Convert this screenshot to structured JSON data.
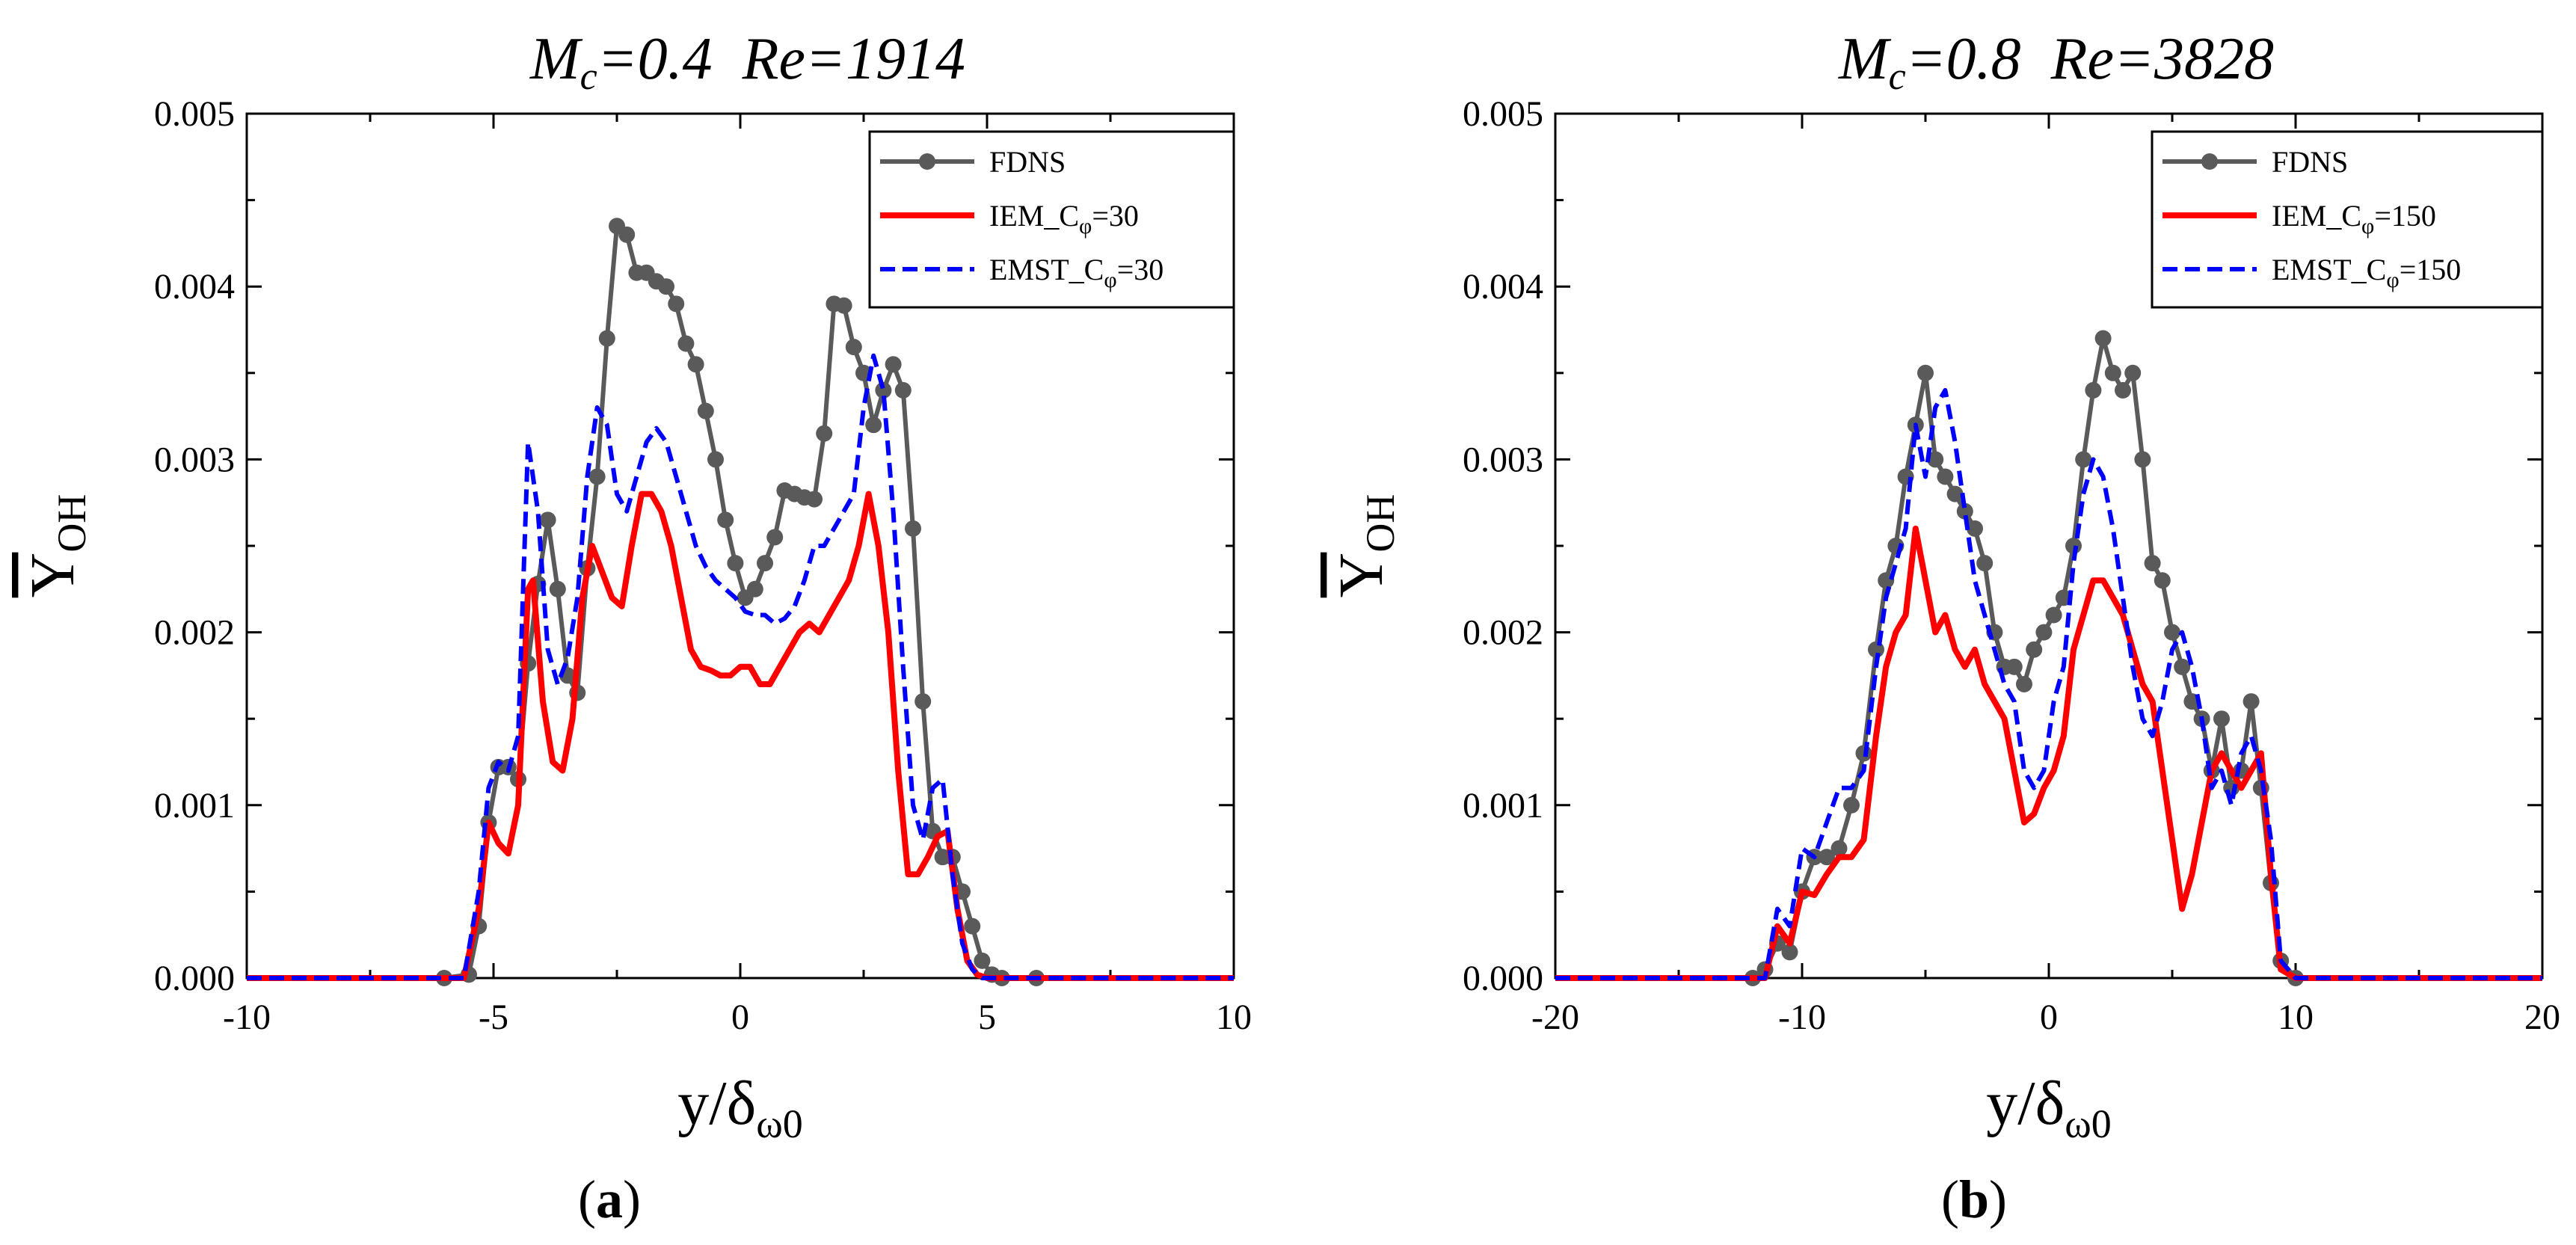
{
  "chart_data": [
    {
      "panel_label": "a",
      "type": "line",
      "title_parts": {
        "m": "M",
        "m_sub": "c",
        "m_value": "=0.4",
        "re": "Re=1914"
      },
      "ylabel_parts": {
        "main": "Y",
        "sub": "OH"
      },
      "xlabel_parts": {
        "main": "y/δ",
        "sub": "ω0"
      },
      "xlim": [
        -10,
        10
      ],
      "ylim": [
        0,
        0.005
      ],
      "xticks": [
        "-10",
        "-5",
        "0",
        "5",
        "10"
      ],
      "yticks": [
        "0.000",
        "0.001",
        "0.002",
        "0.003",
        "0.004",
        "0.005"
      ],
      "legend_position": "top-right",
      "grid": false,
      "series": [
        {
          "name": "FDNS",
          "legend": {
            "main": "FDNS",
            "sub": "",
            "suffix": ""
          },
          "color": "#5a5a5a",
          "style": "solid-markers",
          "x": [
            -10,
            -6,
            -5.5,
            -5.3,
            -5.1,
            -4.9,
            -4.7,
            -4.5,
            -4.3,
            -4.1,
            -3.9,
            -3.7,
            -3.5,
            -3.3,
            -3.1,
            -2.9,
            -2.7,
            -2.5,
            -2.3,
            -2.1,
            -1.9,
            -1.7,
            -1.5,
            -1.3,
            -1.1,
            -0.9,
            -0.7,
            -0.5,
            -0.3,
            -0.1,
            0.1,
            0.3,
            0.5,
            0.7,
            0.9,
            1.1,
            1.3,
            1.5,
            1.7,
            1.9,
            2.1,
            2.3,
            2.5,
            2.7,
            2.9,
            3.1,
            3.3,
            3.5,
            3.7,
            3.9,
            4.1,
            4.3,
            4.5,
            4.7,
            4.9,
            5.1,
            5.3,
            6,
            10
          ],
          "y": [
            0,
            0,
            2e-05,
            0.0003,
            0.0009,
            0.00122,
            0.00122,
            0.00115,
            0.00182,
            0.00228,
            0.00265,
            0.00225,
            0.00175,
            0.00165,
            0.00237,
            0.0029,
            0.0037,
            0.00435,
            0.0043,
            0.00408,
            0.00408,
            0.00403,
            0.004,
            0.0039,
            0.00367,
            0.00355,
            0.00328,
            0.003,
            0.00265,
            0.0024,
            0.0022,
            0.00225,
            0.0024,
            0.00255,
            0.00282,
            0.0028,
            0.00278,
            0.00277,
            0.00315,
            0.0039,
            0.00389,
            0.00365,
            0.0035,
            0.0032,
            0.0034,
            0.00355,
            0.0034,
            0.0026,
            0.0016,
            0.00085,
            0.0007,
            0.0007,
            0.0005,
            0.0003,
            0.0001,
            2e-05,
            0,
            0,
            0
          ]
        },
        {
          "name": "IEM_Cφ=30",
          "legend": {
            "main": "IEM_C",
            "sub": "φ",
            "suffix": "=30"
          },
          "color": "#ff0000",
          "style": "solid",
          "x": [
            -10,
            -6,
            -5.6,
            -5.3,
            -5.1,
            -4.9,
            -4.7,
            -4.5,
            -4.3,
            -4.2,
            -4.0,
            -3.8,
            -3.6,
            -3.4,
            -3.2,
            -3.0,
            -2.8,
            -2.6,
            -2.4,
            -2.2,
            -2.0,
            -1.8,
            -1.6,
            -1.4,
            -1.2,
            -1.0,
            -0.8,
            -0.6,
            -0.4,
            -0.2,
            0,
            0.2,
            0.4,
            0.6,
            0.8,
            1.0,
            1.2,
            1.4,
            1.6,
            1.8,
            2.0,
            2.2,
            2.4,
            2.6,
            2.8,
            3.0,
            3.2,
            3.4,
            3.6,
            3.8,
            4.0,
            4.2,
            4.4,
            4.6,
            4.8,
            5.0,
            5.2,
            6,
            10
          ],
          "y": [
            0,
            0,
            0,
            0.0004,
            0.0009,
            0.00078,
            0.00072,
            0.001,
            0.00225,
            0.0023,
            0.0016,
            0.00125,
            0.0012,
            0.0015,
            0.0022,
            0.0025,
            0.00235,
            0.0022,
            0.00215,
            0.0025,
            0.0028,
            0.0028,
            0.0027,
            0.0025,
            0.0022,
            0.0019,
            0.0018,
            0.00178,
            0.00175,
            0.00175,
            0.0018,
            0.0018,
            0.0017,
            0.0017,
            0.0018,
            0.0019,
            0.002,
            0.00205,
            0.002,
            0.0021,
            0.0022,
            0.0023,
            0.0025,
            0.0028,
            0.0025,
            0.002,
            0.0012,
            0.0006,
            0.0006,
            0.0007,
            0.00082,
            0.00085,
            0.0004,
            0.0001,
            2e-05,
            0,
            0,
            0,
            0
          ]
        },
        {
          "name": "EMST_Cφ=30",
          "legend": {
            "main": "EMST_C",
            "sub": "φ",
            "suffix": "=30"
          },
          "color": "#0000ff",
          "style": "dashed",
          "x": [
            -10,
            -6,
            -5.6,
            -5.3,
            -5.1,
            -4.9,
            -4.7,
            -4.5,
            -4.3,
            -4.1,
            -3.9,
            -3.7,
            -3.5,
            -3.3,
            -3.1,
            -2.9,
            -2.7,
            -2.5,
            -2.3,
            -2.1,
            -1.9,
            -1.7,
            -1.5,
            -1.3,
            -1.1,
            -0.9,
            -0.7,
            -0.5,
            -0.3,
            -0.1,
            0.1,
            0.3,
            0.5,
            0.7,
            0.9,
            1.1,
            1.3,
            1.5,
            1.7,
            1.9,
            2.1,
            2.3,
            2.5,
            2.7,
            2.9,
            3.1,
            3.3,
            3.5,
            3.7,
            3.9,
            4.1,
            4.3,
            4.5,
            4.7,
            4.9,
            5.1,
            5.3,
            6,
            10
          ],
          "y": [
            0,
            0,
            0,
            0.0005,
            0.0011,
            0.00125,
            0.0012,
            0.0014,
            0.0031,
            0.0027,
            0.0019,
            0.0017,
            0.00185,
            0.0022,
            0.0029,
            0.0033,
            0.0032,
            0.0028,
            0.0027,
            0.0029,
            0.0031,
            0.00318,
            0.0031,
            0.0029,
            0.0027,
            0.0025,
            0.00238,
            0.0023,
            0.00225,
            0.0022,
            0.00212,
            0.0021,
            0.0021,
            0.00205,
            0.00208,
            0.00215,
            0.0023,
            0.0025,
            0.0025,
            0.0026,
            0.0027,
            0.0028,
            0.0033,
            0.0036,
            0.0034,
            0.0027,
            0.0018,
            0.001,
            0.0008,
            0.0011,
            0.00115,
            0.0006,
            0.0002,
            5e-05,
            0,
            0,
            0,
            0,
            0
          ]
        }
      ]
    },
    {
      "panel_label": "b",
      "type": "line",
      "title_parts": {
        "m": "M",
        "m_sub": "c",
        "m_value": "=0.8",
        "re": "Re=3828"
      },
      "ylabel_parts": {
        "main": "Y",
        "sub": "OH"
      },
      "xlabel_parts": {
        "main": "y/δ",
        "sub": "ω0"
      },
      "xlim": [
        -20,
        20
      ],
      "ylim": [
        0,
        0.005
      ],
      "xticks": [
        "-20",
        "-10",
        "0",
        "10",
        "20"
      ],
      "yticks": [
        "0.000",
        "0.001",
        "0.002",
        "0.003",
        "0.004",
        "0.005"
      ],
      "legend_position": "top-right",
      "grid": false,
      "series": [
        {
          "name": "FDNS",
          "legend": {
            "main": "FDNS",
            "sub": "",
            "suffix": ""
          },
          "color": "#5a5a5a",
          "style": "solid-markers",
          "x": [
            -20,
            -12,
            -11.5,
            -11,
            -10.5,
            -10,
            -9.5,
            -9,
            -8.5,
            -8,
            -7.5,
            -7,
            -6.6,
            -6.2,
            -5.8,
            -5.4,
            -5.0,
            -4.6,
            -4.2,
            -3.8,
            -3.4,
            -3.0,
            -2.6,
            -2.2,
            -1.8,
            -1.4,
            -1.0,
            -0.6,
            -0.2,
            0.2,
            0.6,
            1.0,
            1.4,
            1.8,
            2.2,
            2.6,
            3.0,
            3.4,
            3.8,
            4.2,
            4.6,
            5.0,
            5.4,
            5.8,
            6.2,
            6.6,
            7.0,
            7.4,
            7.8,
            8.2,
            8.6,
            9.0,
            9.4,
            10,
            20
          ],
          "y": [
            0,
            0,
            5e-05,
            0.0002,
            0.00015,
            0.0005,
            0.0007,
            0.0007,
            0.00075,
            0.001,
            0.0013,
            0.0019,
            0.0023,
            0.0025,
            0.0029,
            0.0032,
            0.0035,
            0.003,
            0.0029,
            0.0028,
            0.0027,
            0.0026,
            0.0024,
            0.002,
            0.0018,
            0.0018,
            0.0017,
            0.0019,
            0.002,
            0.0021,
            0.0022,
            0.0025,
            0.003,
            0.0034,
            0.0037,
            0.0035,
            0.0034,
            0.0035,
            0.003,
            0.0024,
            0.0023,
            0.002,
            0.0018,
            0.0016,
            0.0015,
            0.0012,
            0.0015,
            0.0011,
            0.0012,
            0.0016,
            0.0011,
            0.00055,
            0.0001,
            0,
            0
          ]
        },
        {
          "name": "IEM_Cφ=150",
          "legend": {
            "main": "IEM_C",
            "sub": "φ",
            "suffix": "=150"
          },
          "color": "#ff0000",
          "style": "solid",
          "x": [
            -20,
            -12,
            -11.5,
            -11,
            -10.5,
            -10,
            -9.5,
            -9,
            -8.5,
            -8,
            -7.5,
            -7,
            -6.6,
            -6.2,
            -5.8,
            -5.4,
            -5.0,
            -4.6,
            -4.2,
            -3.8,
            -3.4,
            -3.0,
            -2.6,
            -2.2,
            -1.8,
            -1.4,
            -1.0,
            -0.6,
            -0.2,
            0.2,
            0.6,
            1.0,
            1.4,
            1.8,
            2.2,
            2.6,
            3.0,
            3.4,
            3.8,
            4.2,
            4.6,
            5.0,
            5.4,
            5.8,
            6.2,
            6.6,
            7.0,
            7.4,
            7.8,
            8.2,
            8.6,
            9.0,
            9.4,
            10,
            20
          ],
          "y": [
            0,
            0,
            0,
            0.0003,
            0.0002,
            0.0005,
            0.00048,
            0.0006,
            0.0007,
            0.0007,
            0.0008,
            0.0014,
            0.0018,
            0.002,
            0.0021,
            0.0026,
            0.0023,
            0.002,
            0.0021,
            0.0019,
            0.0018,
            0.0019,
            0.0017,
            0.0016,
            0.0015,
            0.0012,
            0.0009,
            0.00095,
            0.0011,
            0.0012,
            0.0014,
            0.0019,
            0.0021,
            0.0023,
            0.0023,
            0.0022,
            0.0021,
            0.0019,
            0.0017,
            0.0016,
            0.0012,
            0.0008,
            0.0004,
            0.0006,
            0.0009,
            0.0012,
            0.0013,
            0.0012,
            0.0011,
            0.0012,
            0.0013,
            0.0006,
            5e-05,
            0,
            0
          ]
        },
        {
          "name": "EMST_Cφ=150",
          "legend": {
            "main": "EMST_C",
            "sub": "φ",
            "suffix": "=150"
          },
          "color": "#0000ff",
          "style": "dashed",
          "x": [
            -20,
            -12,
            -11.5,
            -11,
            -10.5,
            -10,
            -9.5,
            -9,
            -8.5,
            -8,
            -7.5,
            -7,
            -6.6,
            -6.2,
            -5.8,
            -5.4,
            -5.0,
            -4.6,
            -4.2,
            -3.8,
            -3.4,
            -3.0,
            -2.6,
            -2.2,
            -1.8,
            -1.4,
            -1.0,
            -0.6,
            -0.2,
            0.2,
            0.6,
            1.0,
            1.4,
            1.8,
            2.2,
            2.6,
            3.0,
            3.4,
            3.8,
            4.2,
            4.6,
            5.0,
            5.4,
            5.8,
            6.2,
            6.6,
            7.0,
            7.4,
            7.8,
            8.2,
            8.6,
            9.0,
            9.4,
            10,
            20
          ],
          "y": [
            0,
            0,
            0,
            0.0004,
            0.0003,
            0.00075,
            0.0007,
            0.0009,
            0.0011,
            0.0011,
            0.0012,
            0.0018,
            0.0022,
            0.0024,
            0.0026,
            0.0032,
            0.0029,
            0.0033,
            0.0034,
            0.0031,
            0.0027,
            0.0023,
            0.0021,
            0.0019,
            0.0017,
            0.0016,
            0.0012,
            0.0011,
            0.0012,
            0.0016,
            0.0018,
            0.0024,
            0.0028,
            0.003,
            0.0029,
            0.0026,
            0.0022,
            0.0018,
            0.0015,
            0.0014,
            0.0016,
            0.0019,
            0.002,
            0.0018,
            0.0015,
            0.0011,
            0.0012,
            0.001,
            0.0013,
            0.0014,
            0.0012,
            0.0008,
            0.0001,
            0,
            0
          ]
        }
      ]
    }
  ]
}
